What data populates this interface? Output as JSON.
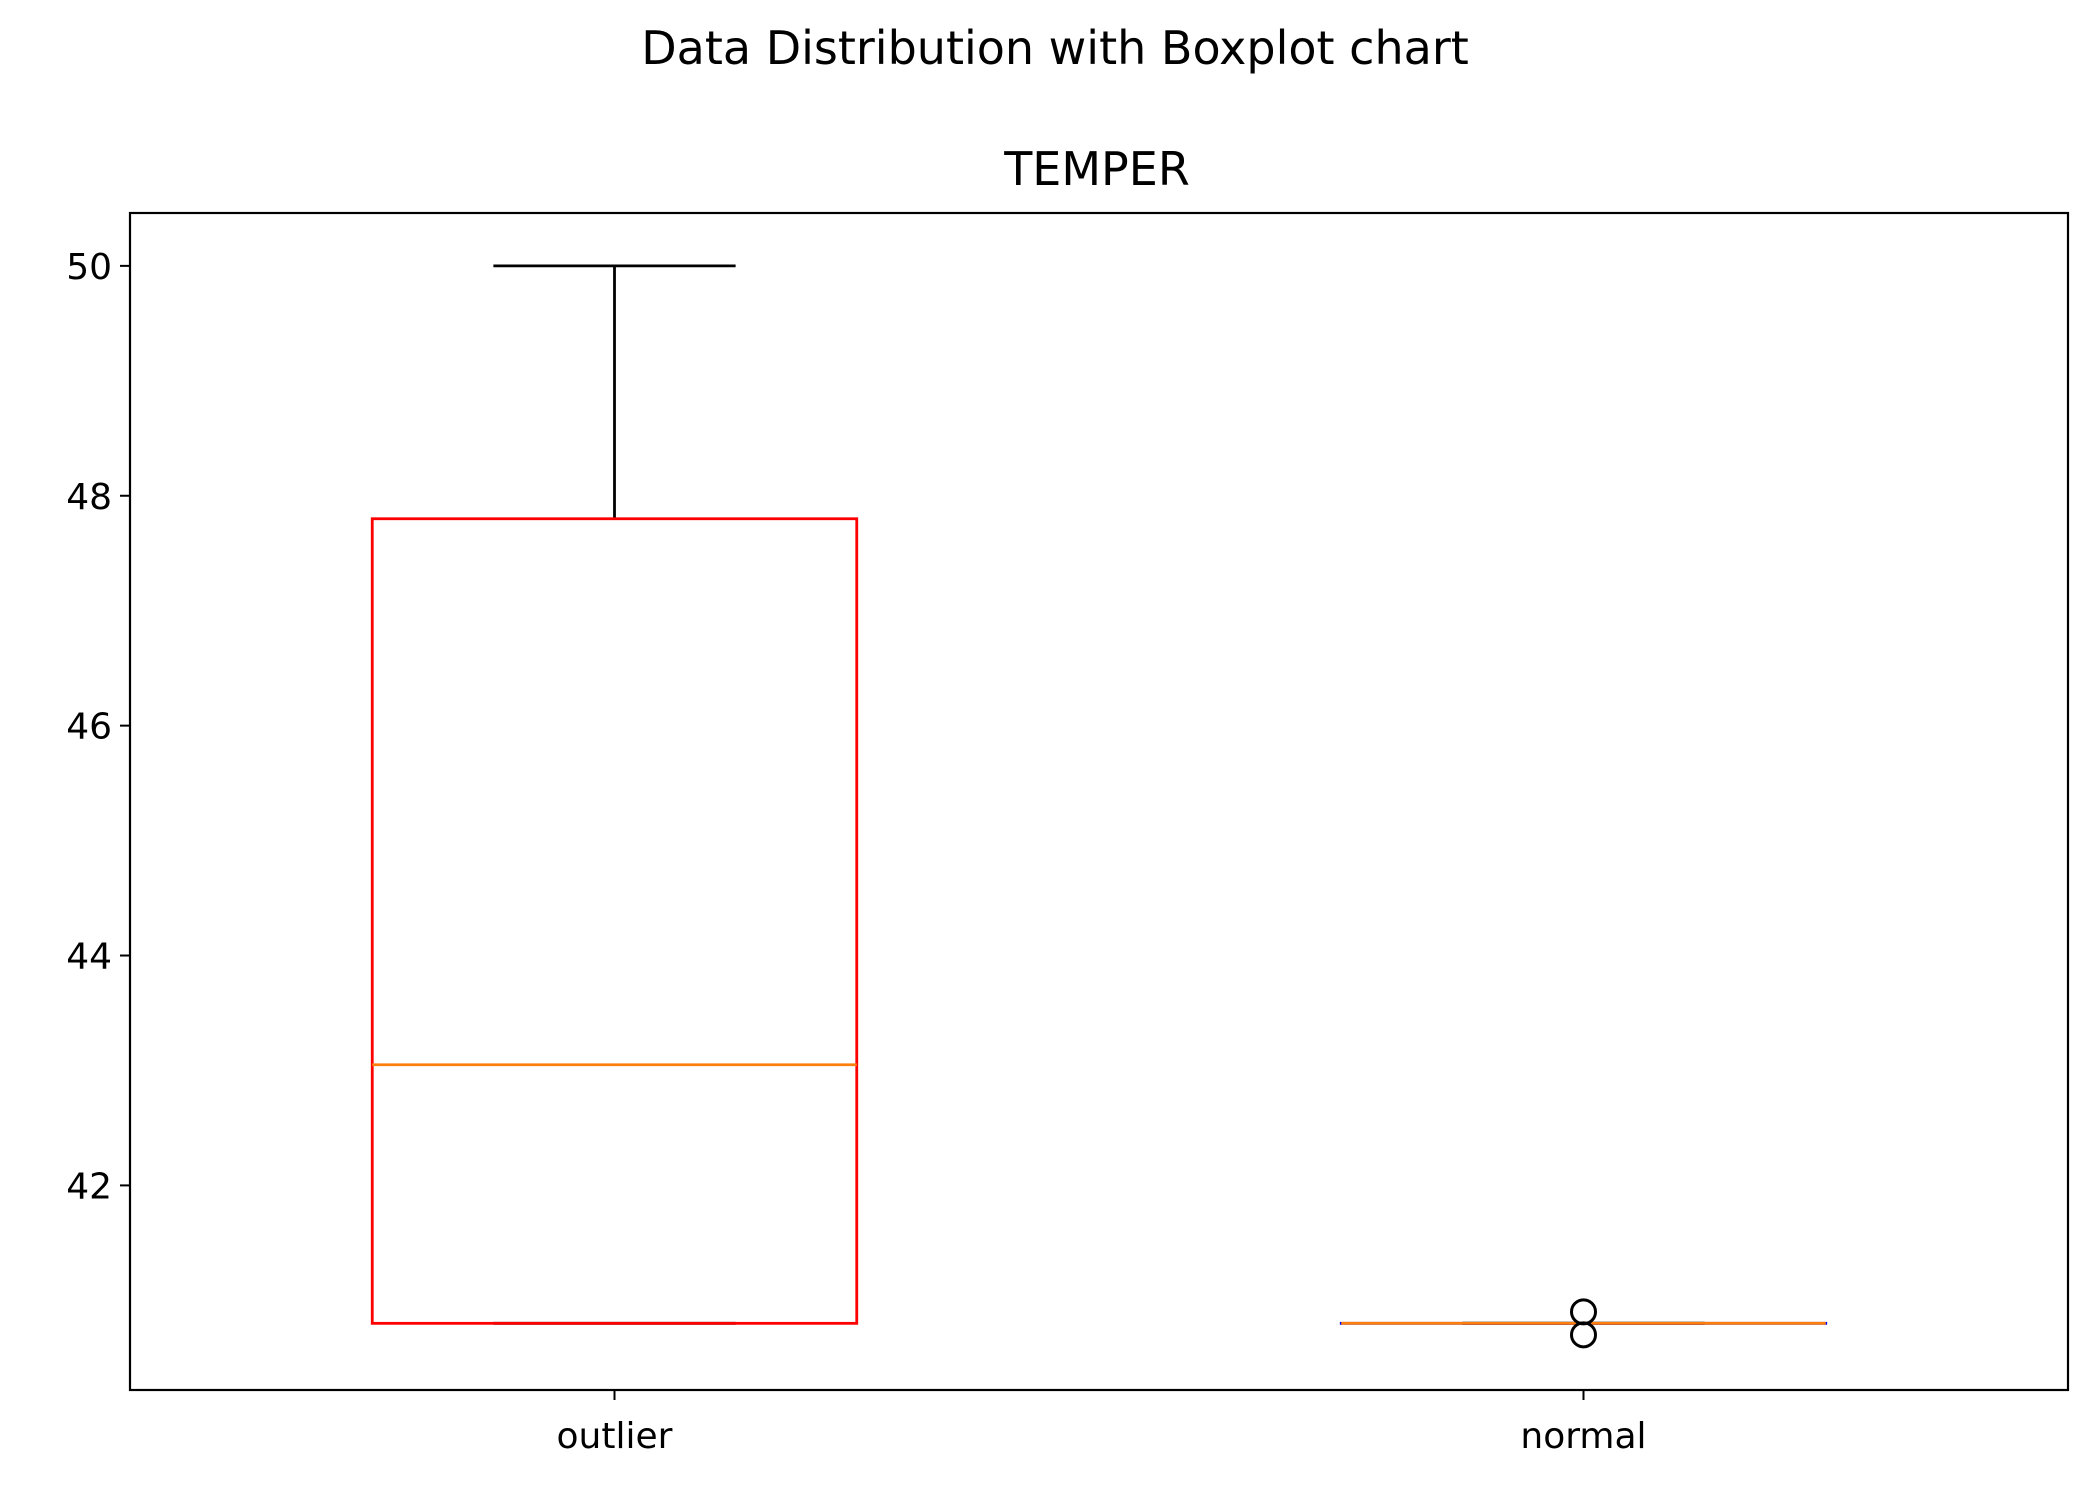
{
  "chart_data": {
    "type": "boxplot",
    "suptitle": "Data Distribution with Boxplot chart",
    "title": "TEMPER",
    "xlabel": "",
    "ylabel": "",
    "ylim": [
      40.22,
      50.46
    ],
    "yticks": [
      42,
      44,
      46,
      48,
      50
    ],
    "categories": [
      "outlier",
      "normal"
    ],
    "boxes": [
      {
        "category": "outlier",
        "whisker_low": 40.8,
        "q1": 40.8,
        "median": 43.05,
        "q3": 47.8,
        "whisker_high": 50.0,
        "fliers": []
      },
      {
        "category": "normal",
        "whisker_low": 40.8,
        "q1": 40.8,
        "median": 40.8,
        "q3": 40.8,
        "whisker_high": 40.8,
        "fliers": [
          40.9,
          40.7
        ]
      }
    ],
    "colors": {
      "box_outlier": "#ff0000",
      "box_normal": "#0000ff",
      "median": "#ff7f0e",
      "whisker": "#000000",
      "flier": "#000000"
    },
    "grid": false,
    "legend": "none"
  }
}
